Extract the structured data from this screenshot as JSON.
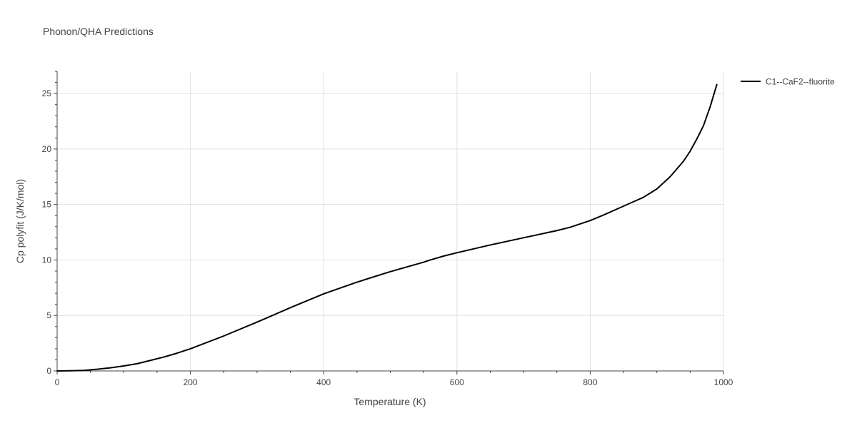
{
  "colors": {
    "line": "#000000",
    "grid": "#e1e1e1",
    "axis": "#444444",
    "text": "#444444"
  },
  "chart_data": {
    "type": "line",
    "title": "Phonon/QHA Predictions",
    "xlabel": "Temperature (K)",
    "ylabel": "Cp polyfit (J/K/mol)",
    "xlim": [
      0,
      1000
    ],
    "ylim": [
      0,
      27
    ],
    "xticks": [
      0,
      200,
      400,
      600,
      800,
      1000
    ],
    "yticks": [
      0,
      5,
      10,
      15,
      20,
      25
    ],
    "grid": true,
    "legend_position": "top-right, outside plot",
    "series": [
      {
        "name": "C1--CaF2--fluorite",
        "color": "#000000",
        "x": [
          0,
          20,
          40,
          60,
          80,
          100,
          120,
          140,
          160,
          180,
          200,
          250,
          300,
          350,
          400,
          450,
          500,
          550,
          560,
          580,
          600,
          650,
          700,
          750,
          770,
          800,
          820,
          850,
          880,
          900,
          920,
          940,
          950,
          960,
          970,
          980,
          990
        ],
        "y": [
          0,
          0.02,
          0.05,
          0.15,
          0.28,
          0.45,
          0.65,
          0.95,
          1.25,
          1.6,
          2.0,
          3.15,
          4.4,
          5.7,
          6.95,
          8.0,
          8.95,
          9.8,
          10.0,
          10.35,
          10.65,
          11.35,
          12.0,
          12.65,
          12.95,
          13.55,
          14.05,
          14.85,
          15.65,
          16.4,
          17.5,
          18.9,
          19.8,
          20.9,
          22.1,
          23.8,
          25.8
        ]
      }
    ]
  }
}
